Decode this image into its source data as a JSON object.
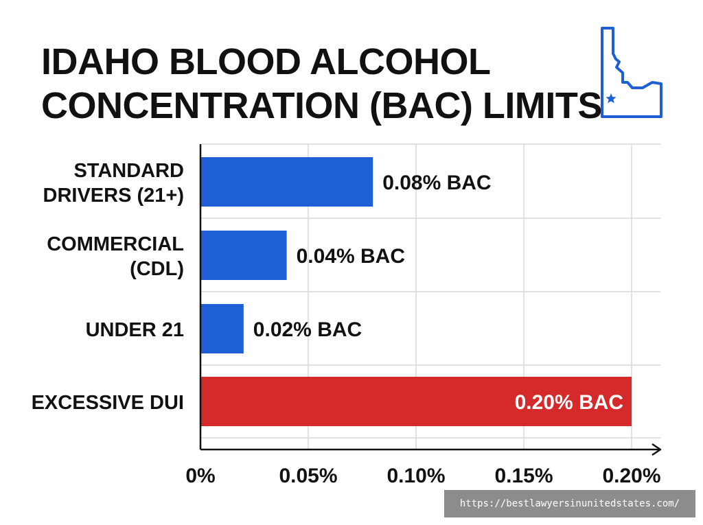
{
  "title": {
    "line1": "IDAHO BLOOD ALCOHOL",
    "line2": "CONCENTRATION (BAC) LIMITS"
  },
  "icon": {
    "name": "idaho-state-outline-icon",
    "color": "#1f5fd6"
  },
  "watermark": {
    "text": "https://bestlawyersinunitedstates.com/"
  },
  "chart_data": {
    "type": "bar",
    "orientation": "horizontal",
    "categories": [
      [
        "STANDARD",
        "DRIVERS (21+)"
      ],
      [
        "COMMERCIAL",
        "(CDL)"
      ],
      [
        "UNDER 21"
      ],
      [
        "EXCESSIVE DUI"
      ]
    ],
    "values": [
      0.08,
      0.04,
      0.02,
      0.2
    ],
    "data_labels": [
      "0.08% BAC",
      "0.04% BAC",
      "0.02% BAC",
      "0.20% BAC"
    ],
    "colors": [
      "#1f5fd6",
      "#1f5fd6",
      "#1f5fd6",
      "#d42a2a"
    ],
    "x_ticks": [
      0,
      0.05,
      0.1,
      0.15,
      0.2
    ],
    "x_tick_labels": [
      "0%",
      "0.05%",
      "0.10%",
      "0.15%",
      "0.20%"
    ],
    "xlim": [
      0,
      0.2
    ],
    "grid": true,
    "xlabel": "",
    "ylabel": ""
  }
}
